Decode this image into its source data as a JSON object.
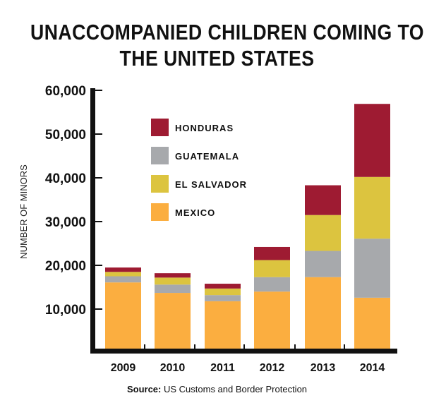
{
  "chart_data": {
    "type": "bar",
    "stacked": true,
    "title_lines": [
      "UNACCOMPANIED CHILDREN COMING TO",
      "THE UNITED STATES"
    ],
    "xlabel": "",
    "ylabel": "NUMBER OF MINORS",
    "ylim": [
      0,
      60000
    ],
    "yticks": [
      10000,
      20000,
      30000,
      40000,
      50000,
      60000
    ],
    "ytick_labels": [
      "10,000",
      "20,000",
      "30,000",
      "40,000",
      "50,000",
      "60,000"
    ],
    "categories": [
      "2009",
      "2010",
      "2011",
      "2012",
      "2013",
      "2014"
    ],
    "series": [
      {
        "name": "MEXICO",
        "color": "#fbae40",
        "values": [
          16100,
          13700,
          11800,
          14000,
          17300,
          12600
        ]
      },
      {
        "name": "GUATEMALA",
        "color": "#a7a9ac",
        "values": [
          1400,
          1900,
          1400,
          3300,
          6000,
          13500
        ]
      },
      {
        "name": "EL SALVADOR",
        "color": "#dcc43f",
        "values": [
          1000,
          1600,
          1500,
          3900,
          8200,
          14100
        ]
      },
      {
        "name": "HONDURAS",
        "color": "#9e1b32",
        "values": [
          1000,
          1000,
          1100,
          3000,
          6800,
          16700
        ]
      }
    ],
    "legend_order": [
      "HONDURAS",
      "GUATEMALA",
      "EL SALVADOR",
      "MEXICO"
    ],
    "legend_position": "upper-left inside",
    "grid": false
  },
  "source": {
    "label": "Source:",
    "text": " US Customs and Border Protection"
  }
}
